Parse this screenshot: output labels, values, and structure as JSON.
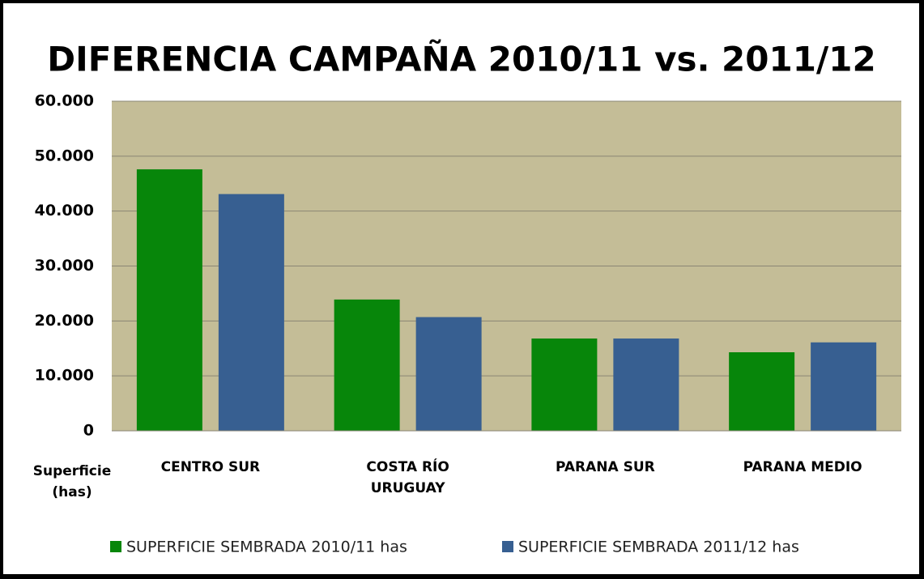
{
  "chart_data": {
    "type": "bar",
    "title": "DIFERENCIA CAMPAÑA 2010/11 vs. 2011/12",
    "y_label": "Superficie (has)",
    "categories": [
      "CENTRO SUR",
      "COSTA RÍO URUGUAY",
      "PARANA SUR",
      "PARANA MEDIO"
    ],
    "series": [
      {
        "name": "SUPERFICIE SEMBRADA 2010/11 has",
        "color": "#07860a",
        "values": [
          47600,
          23900,
          16800,
          14300
        ]
      },
      {
        "name": "SUPERFICIE SEMBRADA 2011/12 has",
        "color": "#375f91",
        "values": [
          43100,
          20700,
          16800,
          16100
        ]
      }
    ],
    "ylim": [
      0,
      60000
    ],
    "yticks": [
      0,
      {
        "value": 10000,
        "label": "10.000"
      },
      {
        "value": 20000,
        "label": "20.000"
      },
      {
        "value": 30000,
        "label": "30.000"
      },
      {
        "value": 40000,
        "label": "40.000"
      },
      {
        "value": 50000,
        "label": "50.000"
      },
      {
        "value": 60000,
        "label": "60.000"
      }
    ],
    "grid": true,
    "legend": "bottom",
    "background": "#c4bd97"
  }
}
